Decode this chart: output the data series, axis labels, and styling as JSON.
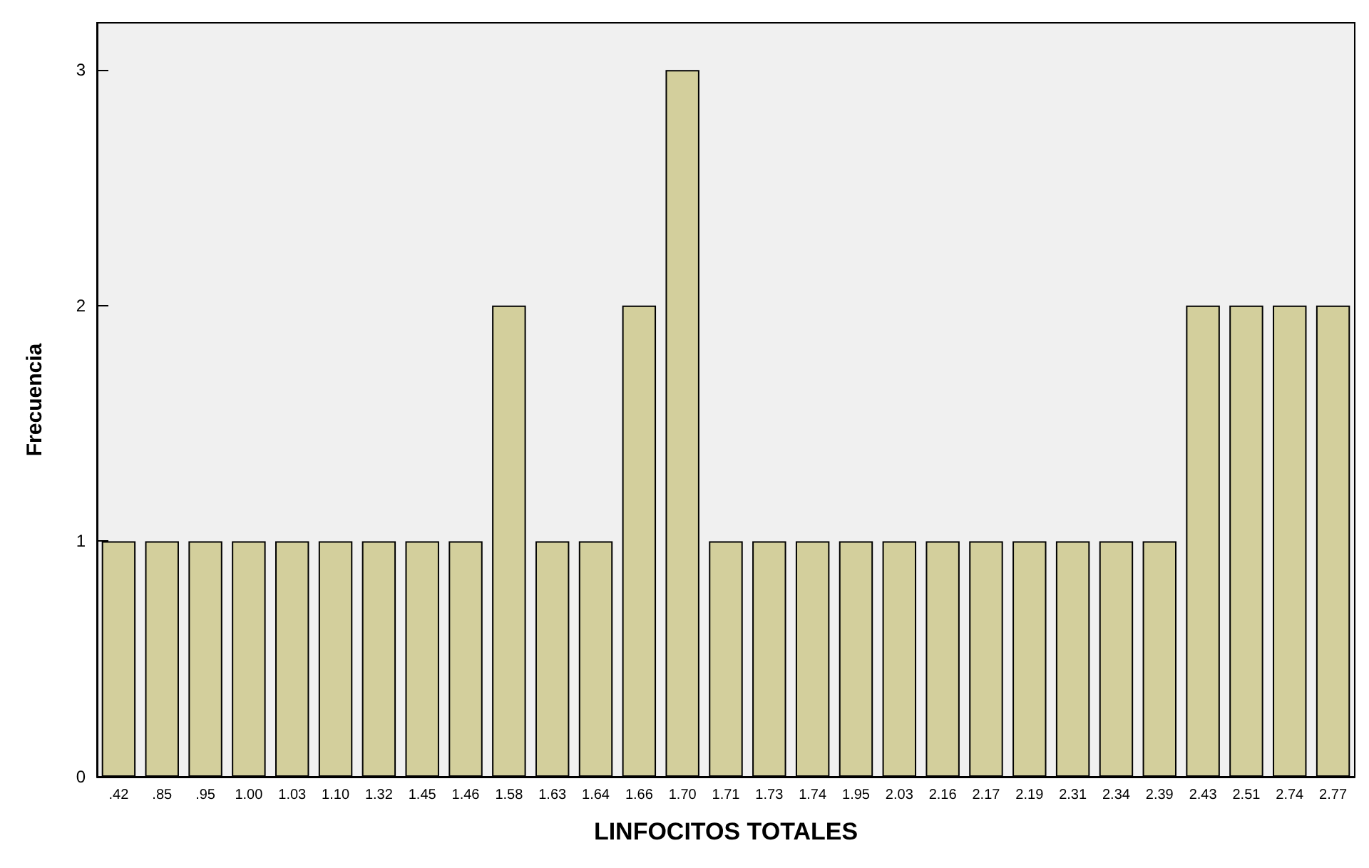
{
  "chart_data": {
    "type": "bar",
    "xlabel": "LINFOCITOS TOTALES",
    "ylabel": "Frecuencia",
    "categories": [
      ".42",
      ".85",
      ".95",
      "1.00",
      "1.03",
      "1.10",
      "1.32",
      "1.45",
      "1.46",
      "1.58",
      "1.63",
      "1.64",
      "1.66",
      "1.70",
      "1.71",
      "1.73",
      "1.74",
      "1.95",
      "2.03",
      "2.16",
      "2.17",
      "2.19",
      "2.31",
      "2.34",
      "2.39",
      "2.43",
      "2.51",
      "2.74",
      "2.77"
    ],
    "values": [
      1,
      1,
      1,
      1,
      1,
      1,
      1,
      1,
      1,
      2,
      1,
      1,
      2,
      3,
      1,
      1,
      1,
      1,
      1,
      1,
      1,
      1,
      1,
      1,
      1,
      2,
      2,
      2,
      2
    ],
    "color": "#d3cf9c",
    "ylim": [
      0,
      3.2
    ],
    "yticks": [
      0,
      1,
      2,
      3
    ],
    "grid": false
  }
}
